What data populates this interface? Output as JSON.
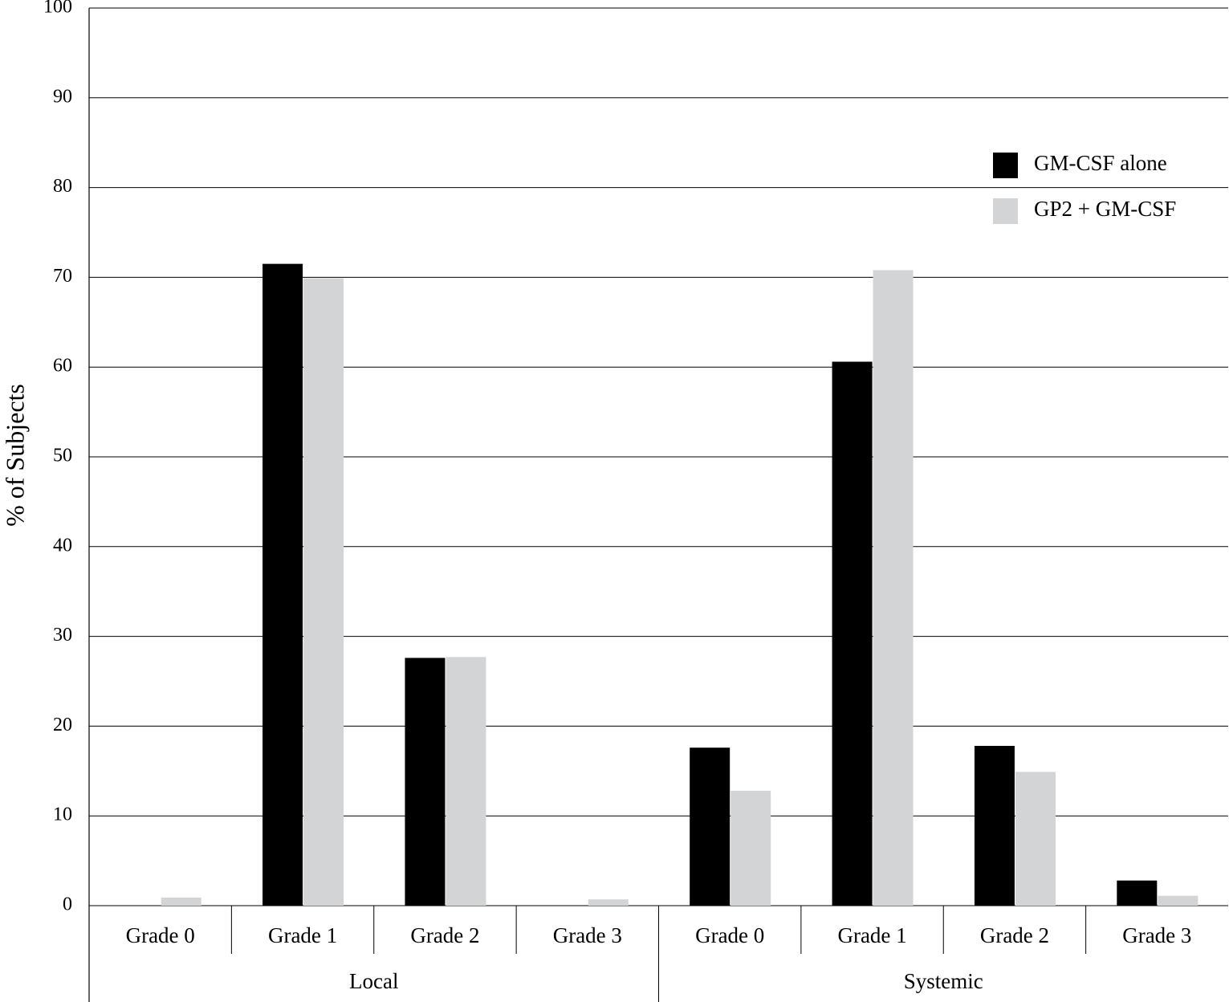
{
  "chart_data": {
    "type": "bar",
    "y_label": "% of Subjects",
    "groups": [
      {
        "label": "Local",
        "categories": [
          "Grade 0",
          "Grade 1",
          "Grade 2",
          "Grade 3"
        ]
      },
      {
        "label": "Systemic",
        "categories": [
          "Grade 0",
          "Grade 1",
          "Grade 2",
          "Grade 3"
        ]
      }
    ],
    "series": [
      {
        "name": "GM-CSF alone",
        "color": "#000000",
        "values": [
          0,
          71.5,
          27.6,
          0,
          17.6,
          60.6,
          17.8,
          2.8
        ]
      },
      {
        "name": "GP2 + GM-CSF",
        "color": "#d3d4d6",
        "values": [
          0.9,
          69.9,
          27.7,
          0.7,
          12.8,
          70.8,
          14.9,
          1.1
        ]
      }
    ],
    "ylim": [
      0,
      100
    ],
    "yticks": [
      0,
      10,
      20,
      30,
      40,
      50,
      60,
      70,
      80,
      90,
      100
    ],
    "grid": true,
    "legend": "upper-right"
  }
}
